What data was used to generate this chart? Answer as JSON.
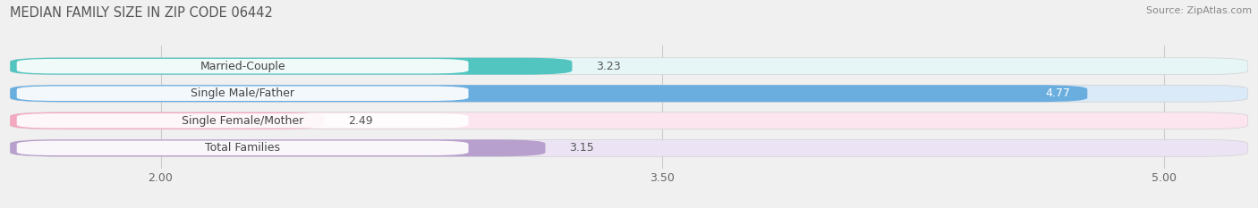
{
  "title": "MEDIAN FAMILY SIZE IN ZIP CODE 06442",
  "source": "Source: ZipAtlas.com",
  "categories": [
    "Married-Couple",
    "Single Male/Father",
    "Single Female/Mother",
    "Total Families"
  ],
  "values": [
    3.23,
    4.77,
    2.49,
    3.15
  ],
  "bar_colors": [
    "#52c5c0",
    "#6aaee0",
    "#f4a8c0",
    "#b8a0ce"
  ],
  "bar_background_colors": [
    "#e6f6f6",
    "#daeaf8",
    "#fce5ee",
    "#ece4f4"
  ],
  "value_colors": [
    "#666666",
    "#ffffff",
    "#666666",
    "#666666"
  ],
  "xlim_min": 1.55,
  "xlim_max": 5.25,
  "xticks": [
    2.0,
    3.5,
    5.0
  ],
  "xlabel_fontsize": 9,
  "title_fontsize": 10.5,
  "value_fontsize": 9,
  "label_fontsize": 9,
  "bar_height": 0.62,
  "figsize": [
    14.06,
    2.33
  ],
  "dpi": 100,
  "bg_color": "#f0f0f0"
}
